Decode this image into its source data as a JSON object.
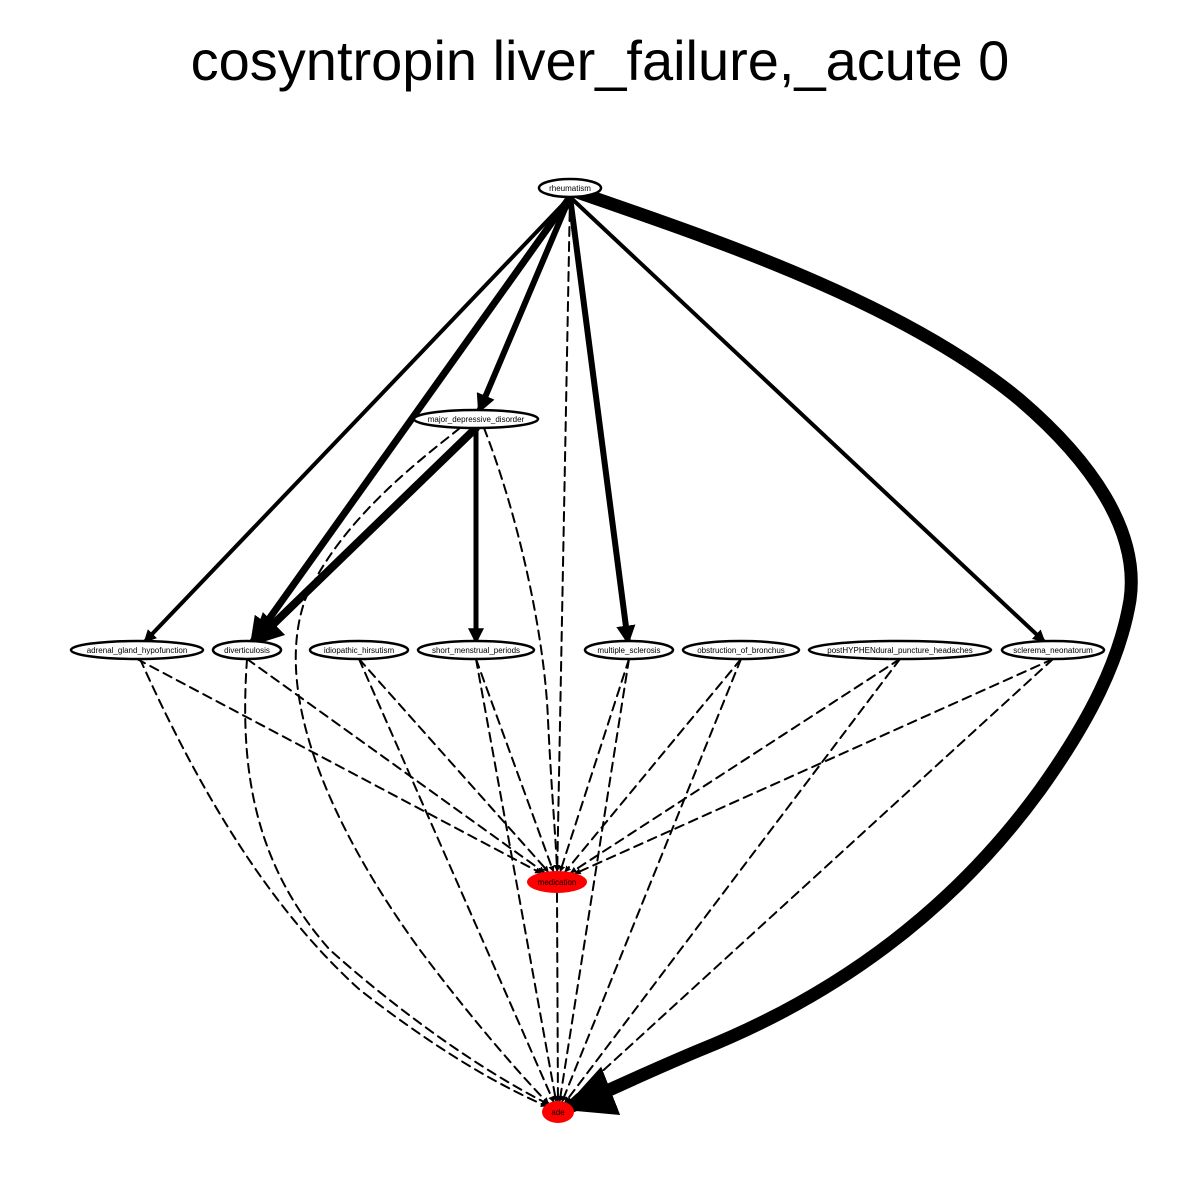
{
  "title": "cosyntropin liver_failure,_acute 0",
  "colors": {
    "highlight": "#ff0000",
    "default_fill": "#ffffff",
    "stroke": "#000000"
  },
  "nodes": [
    {
      "id": "rheumatism",
      "label": "rheumatism",
      "highlight": false
    },
    {
      "id": "major_depressive_disorder",
      "label": "major_depressive_disorder",
      "highlight": false
    },
    {
      "id": "adrenal_gland_hypofunction",
      "label": "adrenal_gland_hypofunction",
      "highlight": false
    },
    {
      "id": "diverticulosis",
      "label": "diverticulosis",
      "highlight": false
    },
    {
      "id": "idiopathic_hirsutism",
      "label": "idiopathic_hirsutism",
      "highlight": false
    },
    {
      "id": "short_menstrual_periods",
      "label": "short_menstrual_periods",
      "highlight": false
    },
    {
      "id": "multiple_sclerosis",
      "label": "multiple_sclerosis",
      "highlight": false
    },
    {
      "id": "obstruction_of_bronchus",
      "label": "obstruction_of_bronchus",
      "highlight": false
    },
    {
      "id": "postHYPHENdural_puncture_headaches",
      "label": "postHYPHENdural_puncture_headaches",
      "highlight": false
    },
    {
      "id": "sclerema_neonatorum",
      "label": "sclerema_neonatorum",
      "highlight": false
    },
    {
      "id": "medication",
      "label": "medication",
      "highlight": true
    },
    {
      "id": "ade",
      "label": "ade",
      "highlight": true
    }
  ],
  "edges": [
    {
      "from": "rheumatism",
      "to": "adrenal_gland_hypofunction",
      "style": "solid",
      "weight": 4
    },
    {
      "from": "rheumatism",
      "to": "diverticulosis",
      "style": "solid",
      "weight": 7
    },
    {
      "from": "rheumatism",
      "to": "major_depressive_disorder",
      "style": "solid",
      "weight": 6
    },
    {
      "from": "rheumatism",
      "to": "multiple_sclerosis",
      "style": "solid",
      "weight": 6
    },
    {
      "from": "rheumatism",
      "to": "sclerema_neonatorum",
      "style": "solid",
      "weight": 4
    },
    {
      "from": "rheumatism",
      "to": "ade",
      "style": "solid",
      "weight": 13
    },
    {
      "from": "rheumatism",
      "to": "medication",
      "style": "dashed",
      "weight": 2
    },
    {
      "from": "major_depressive_disorder",
      "to": "diverticulosis",
      "style": "solid",
      "weight": 8
    },
    {
      "from": "major_depressive_disorder",
      "to": "short_menstrual_periods",
      "style": "solid",
      "weight": 5
    },
    {
      "from": "major_depressive_disorder",
      "to": "medication",
      "style": "dashed",
      "weight": 2
    },
    {
      "from": "major_depressive_disorder",
      "to": "ade",
      "style": "dashed",
      "weight": 2
    },
    {
      "from": "adrenal_gland_hypofunction",
      "to": "medication",
      "style": "dashed",
      "weight": 2
    },
    {
      "from": "adrenal_gland_hypofunction",
      "to": "ade",
      "style": "dashed",
      "weight": 2
    },
    {
      "from": "diverticulosis",
      "to": "medication",
      "style": "dashed",
      "weight": 2
    },
    {
      "from": "diverticulosis",
      "to": "ade",
      "style": "dashed",
      "weight": 2
    },
    {
      "from": "idiopathic_hirsutism",
      "to": "medication",
      "style": "dashed",
      "weight": 2
    },
    {
      "from": "idiopathic_hirsutism",
      "to": "ade",
      "style": "dashed",
      "weight": 2
    },
    {
      "from": "short_menstrual_periods",
      "to": "medication",
      "style": "dashed",
      "weight": 2
    },
    {
      "from": "short_menstrual_periods",
      "to": "ade",
      "style": "dashed",
      "weight": 2
    },
    {
      "from": "multiple_sclerosis",
      "to": "medication",
      "style": "dashed",
      "weight": 2
    },
    {
      "from": "multiple_sclerosis",
      "to": "ade",
      "style": "dashed",
      "weight": 2
    },
    {
      "from": "obstruction_of_bronchus",
      "to": "medication",
      "style": "dashed",
      "weight": 2
    },
    {
      "from": "obstruction_of_bronchus",
      "to": "ade",
      "style": "dashed",
      "weight": 2
    },
    {
      "from": "postHYPHENdural_puncture_headaches",
      "to": "medication",
      "style": "dashed",
      "weight": 2
    },
    {
      "from": "postHYPHENdural_puncture_headaches",
      "to": "ade",
      "style": "dashed",
      "weight": 2
    },
    {
      "from": "sclerema_neonatorum",
      "to": "medication",
      "style": "dashed",
      "weight": 2
    },
    {
      "from": "sclerema_neonatorum",
      "to": "ade",
      "style": "dashed",
      "weight": 2
    },
    {
      "from": "medication",
      "to": "ade",
      "style": "dashed",
      "weight": 2
    }
  ]
}
